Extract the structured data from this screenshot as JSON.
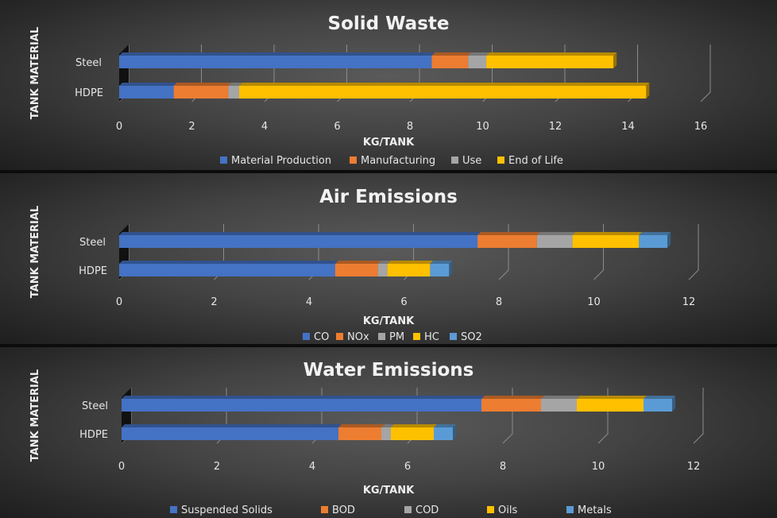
{
  "colors": {
    "blue": "#4472C4",
    "orange": "#ED7D31",
    "gray": "#A5A5A5",
    "yellow": "#FFC000",
    "lightblue": "#5B9BD5",
    "text": "#E6E6E6",
    "grid": "#8C8C8C"
  },
  "chart_data": [
    {
      "type": "bar",
      "orientation": "horizontal",
      "stacked": true,
      "style": "3d",
      "title": "Solid Waste",
      "xlabel": "KG/TANK",
      "ylabel": "TANK MATERIAL",
      "categories": [
        "Steel",
        "HDPE"
      ],
      "xlim": [
        0,
        16
      ],
      "xticks": [
        0,
        2,
        4,
        6,
        8,
        10,
        12,
        14,
        16
      ],
      "gridlines": "vertical",
      "legend_position": "bottom",
      "series": [
        {
          "name": "Material Production",
          "color": "#4472C4",
          "values": [
            8.6,
            1.5
          ]
        },
        {
          "name": "Manufacturing",
          "color": "#ED7D31",
          "values": [
            1.0,
            1.5
          ]
        },
        {
          "name": "Use",
          "color": "#A5A5A5",
          "values": [
            0.5,
            0.3
          ]
        },
        {
          "name": "End of Life",
          "color": "#FFC000",
          "values": [
            3.5,
            11.2
          ]
        }
      ]
    },
    {
      "type": "bar",
      "orientation": "horizontal",
      "stacked": true,
      "style": "3d",
      "title": "Air Emissions",
      "xlabel": "KG/TANK",
      "ylabel": "TANK MATERIAL",
      "categories": [
        "Steel",
        "HDPE"
      ],
      "xlim": [
        0,
        12
      ],
      "xticks": [
        0,
        2,
        4,
        6,
        8,
        10,
        12
      ],
      "gridlines": "vertical",
      "legend_position": "bottom",
      "series": [
        {
          "name": "CO",
          "color": "#4472C4",
          "values": [
            7.55,
            4.55
          ]
        },
        {
          "name": "NOx",
          "color": "#ED7D31",
          "values": [
            1.25,
            0.9
          ]
        },
        {
          "name": "PM",
          "color": "#A5A5A5",
          "values": [
            0.75,
            0.2
          ]
        },
        {
          "name": "HC",
          "color": "#FFC000",
          "values": [
            1.4,
            0.9
          ]
        },
        {
          "name": "SO2",
          "color": "#5B9BD5",
          "values": [
            0.6,
            0.4
          ]
        }
      ]
    },
    {
      "type": "bar",
      "orientation": "horizontal",
      "stacked": true,
      "style": "3d",
      "title": "Water Emissions",
      "xlabel": "KG/TANK",
      "ylabel": "TANK MATERIAL",
      "categories": [
        "Steel",
        "HDPE"
      ],
      "xlim": [
        0,
        12
      ],
      "xticks": [
        0,
        2,
        4,
        6,
        8,
        10,
        12
      ],
      "gridlines": "vertical",
      "legend_position": "bottom",
      "series": [
        {
          "name": "Suspended Solids",
          "color": "#4472C4",
          "values": [
            7.55,
            4.55
          ]
        },
        {
          "name": "BOD",
          "color": "#ED7D31",
          "values": [
            1.25,
            0.9
          ]
        },
        {
          "name": "COD",
          "color": "#A5A5A5",
          "values": [
            0.75,
            0.2
          ]
        },
        {
          "name": "Oils",
          "color": "#FFC000",
          "values": [
            1.4,
            0.9
          ]
        },
        {
          "name": "Metals",
          "color": "#5B9BD5",
          "values": [
            0.6,
            0.4
          ]
        }
      ]
    }
  ]
}
